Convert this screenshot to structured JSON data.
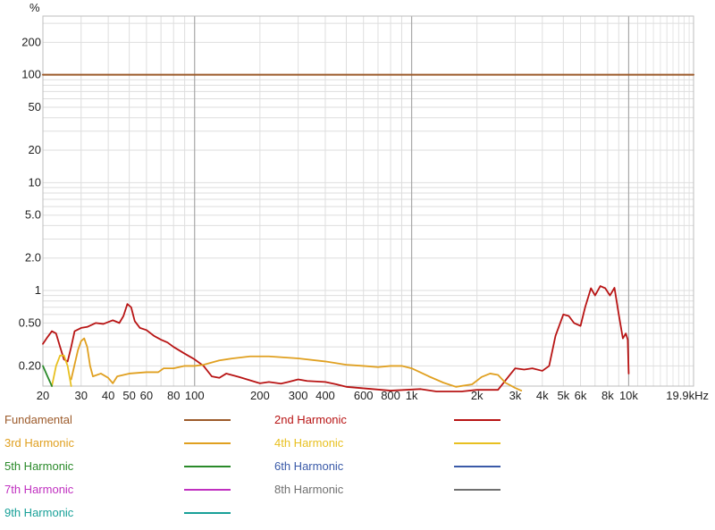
{
  "chart_data": {
    "type": "line",
    "ylabel": "%",
    "x_scale": "log",
    "y_scale": "log",
    "xlim": [
      20,
      19900
    ],
    "ylim": [
      0.13,
      350
    ],
    "grid": true,
    "x_ticks": [
      {
        "value": 20,
        "label": "20"
      },
      {
        "value": 30,
        "label": "30"
      },
      {
        "value": 40,
        "label": "40"
      },
      {
        "value": 50,
        "label": "50"
      },
      {
        "value": 60,
        "label": "60"
      },
      {
        "value": 80,
        "label": "80"
      },
      {
        "value": 100,
        "label": "100"
      },
      {
        "value": 200,
        "label": "200"
      },
      {
        "value": 300,
        "label": "300"
      },
      {
        "value": 400,
        "label": "400"
      },
      {
        "value": 600,
        "label": "600"
      },
      {
        "value": 800,
        "label": "800"
      },
      {
        "value": 1000,
        "label": "1k"
      },
      {
        "value": 2000,
        "label": "2k"
      },
      {
        "value": 3000,
        "label": "3k"
      },
      {
        "value": 4000,
        "label": "4k"
      },
      {
        "value": 5000,
        "label": "5k"
      },
      {
        "value": 6000,
        "label": "6k"
      },
      {
        "value": 8000,
        "label": "8k"
      },
      {
        "value": 10000,
        "label": "10k"
      },
      {
        "value": 19900,
        "label": "19.9kHz"
      }
    ],
    "y_ticks": [
      {
        "value": 200,
        "label": "200"
      },
      {
        "value": 100,
        "label": "100"
      },
      {
        "value": 50,
        "label": "50"
      },
      {
        "value": 20,
        "label": "20"
      },
      {
        "value": 10,
        "label": "10"
      },
      {
        "value": 5,
        "label": "5.0"
      },
      {
        "value": 2,
        "label": "2.0"
      },
      {
        "value": 1,
        "label": "1"
      },
      {
        "value": 0.5,
        "label": "0.50"
      },
      {
        "value": 0.2,
        "label": "0.20"
      }
    ],
    "series": [
      {
        "name": "Fundamental",
        "color": "#9c5a2a",
        "points": [
          [
            20,
            100
          ],
          [
            19900,
            100
          ]
        ]
      },
      {
        "name": "2nd Harmonic",
        "color": "#b81414",
        "points": [
          [
            20,
            0.32
          ],
          [
            21,
            0.37
          ],
          [
            22,
            0.42
          ],
          [
            23,
            0.4
          ],
          [
            24,
            0.3
          ],
          [
            25,
            0.23
          ],
          [
            26,
            0.22
          ],
          [
            27,
            0.3
          ],
          [
            28,
            0.42
          ],
          [
            30,
            0.45
          ],
          [
            32,
            0.46
          ],
          [
            35,
            0.5
          ],
          [
            38,
            0.49
          ],
          [
            42,
            0.53
          ],
          [
            45,
            0.5
          ],
          [
            47,
            0.58
          ],
          [
            49,
            0.75
          ],
          [
            51,
            0.7
          ],
          [
            53,
            0.52
          ],
          [
            56,
            0.45
          ],
          [
            60,
            0.43
          ],
          [
            65,
            0.38
          ],
          [
            70,
            0.35
          ],
          [
            75,
            0.33
          ],
          [
            80,
            0.3
          ],
          [
            90,
            0.26
          ],
          [
            100,
            0.23
          ],
          [
            110,
            0.2
          ],
          [
            120,
            0.16
          ],
          [
            130,
            0.155
          ],
          [
            140,
            0.17
          ],
          [
            160,
            0.158
          ],
          [
            200,
            0.138
          ],
          [
            220,
            0.142
          ],
          [
            250,
            0.137
          ],
          [
            270,
            0.142
          ],
          [
            300,
            0.15
          ],
          [
            330,
            0.145
          ],
          [
            400,
            0.142
          ],
          [
            450,
            0.135
          ],
          [
            500,
            0.128
          ],
          [
            800,
            0.118
          ],
          [
            1100,
            0.122
          ],
          [
            1300,
            0.116
          ],
          [
            1700,
            0.116
          ],
          [
            2000,
            0.12
          ],
          [
            2500,
            0.12
          ],
          [
            2800,
            0.16
          ],
          [
            3000,
            0.19
          ],
          [
            3300,
            0.185
          ],
          [
            3600,
            0.19
          ],
          [
            4000,
            0.18
          ],
          [
            4300,
            0.2
          ],
          [
            4600,
            0.38
          ],
          [
            5000,
            0.6
          ],
          [
            5300,
            0.58
          ],
          [
            5600,
            0.5
          ],
          [
            6000,
            0.47
          ],
          [
            6300,
            0.7
          ],
          [
            6700,
            1.05
          ],
          [
            7000,
            0.9
          ],
          [
            7400,
            1.1
          ],
          [
            7800,
            1.05
          ],
          [
            8200,
            0.9
          ],
          [
            8600,
            1.06
          ],
          [
            9000,
            0.6
          ],
          [
            9400,
            0.36
          ],
          [
            9700,
            0.4
          ],
          [
            9900,
            0.35
          ],
          [
            10000,
            0.17
          ]
        ]
      },
      {
        "name": "3rd Harmonic",
        "color": "#e0a020",
        "points": [
          [
            27,
            0.15
          ],
          [
            29,
            0.28
          ],
          [
            30,
            0.34
          ],
          [
            31,
            0.36
          ],
          [
            32,
            0.3
          ],
          [
            33,
            0.2
          ],
          [
            34,
            0.16
          ],
          [
            37,
            0.17
          ],
          [
            40,
            0.155
          ],
          [
            42,
            0.138
          ],
          [
            44,
            0.16
          ],
          [
            50,
            0.17
          ],
          [
            60,
            0.175
          ],
          [
            68,
            0.175
          ],
          [
            72,
            0.19
          ],
          [
            80,
            0.19
          ],
          [
            90,
            0.2
          ],
          [
            100,
            0.2
          ],
          [
            110,
            0.205
          ],
          [
            130,
            0.225
          ],
          [
            150,
            0.235
          ],
          [
            180,
            0.245
          ],
          [
            220,
            0.245
          ],
          [
            300,
            0.235
          ],
          [
            400,
            0.22
          ],
          [
            500,
            0.205
          ],
          [
            600,
            0.2
          ],
          [
            700,
            0.195
          ],
          [
            800,
            0.2
          ],
          [
            900,
            0.2
          ],
          [
            1000,
            0.19
          ],
          [
            1200,
            0.16
          ],
          [
            1400,
            0.14
          ],
          [
            1600,
            0.128
          ],
          [
            1900,
            0.135
          ],
          [
            2100,
            0.158
          ],
          [
            2300,
            0.17
          ],
          [
            2500,
            0.165
          ],
          [
            2700,
            0.14
          ],
          [
            3000,
            0.125
          ],
          [
            3200,
            0.118
          ]
        ]
      },
      {
        "name": "4th Harmonic",
        "color": "#e8c020",
        "points": [
          [
            22,
            0.13
          ],
          [
            23,
            0.2
          ],
          [
            24,
            0.25
          ],
          [
            25,
            0.25
          ],
          [
            26,
            0.2
          ],
          [
            27,
            0.13
          ]
        ]
      },
      {
        "name": "5th Harmonic",
        "color": "#2a8a2a",
        "points": [
          [
            20,
            0.2
          ],
          [
            21,
            0.16
          ],
          [
            22,
            0.13
          ]
        ]
      },
      {
        "name": "6th Harmonic",
        "color": "#3a5aa8",
        "points": []
      },
      {
        "name": "7th Harmonic",
        "color": "#c030c0",
        "points": []
      },
      {
        "name": "8th Harmonic",
        "color": "#707070",
        "points": []
      },
      {
        "name": "9th Harmonic",
        "color": "#18a098",
        "points": []
      }
    ]
  }
}
